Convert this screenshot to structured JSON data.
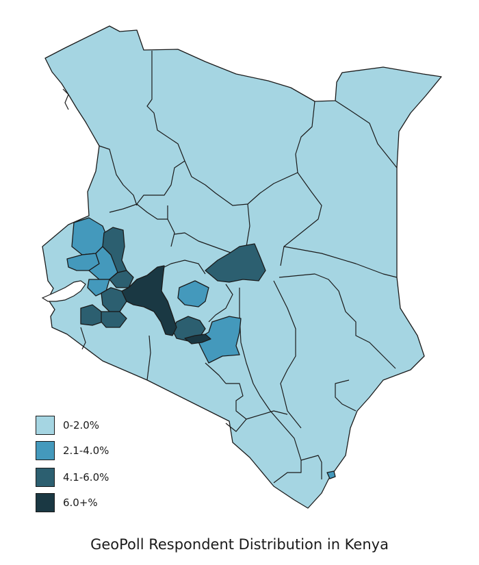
{
  "map": {
    "colors": {
      "c0": "#a5d5e2",
      "c1": "#4499bc",
      "c2": "#2c5f70",
      "c3": "#1a3843"
    }
  },
  "legend": {
    "items": [
      {
        "label": "0-2.0%",
        "color": "#a5d5e2"
      },
      {
        "label": "2.1-4.0%",
        "color": "#4499bc"
      },
      {
        "label": "4.1-6.0%",
        "color": "#2c5f70"
      },
      {
        "label": "6.0+%",
        "color": "#1a3843"
      }
    ]
  },
  "caption": "GeoPoll Respondent Distribution in Kenya"
}
